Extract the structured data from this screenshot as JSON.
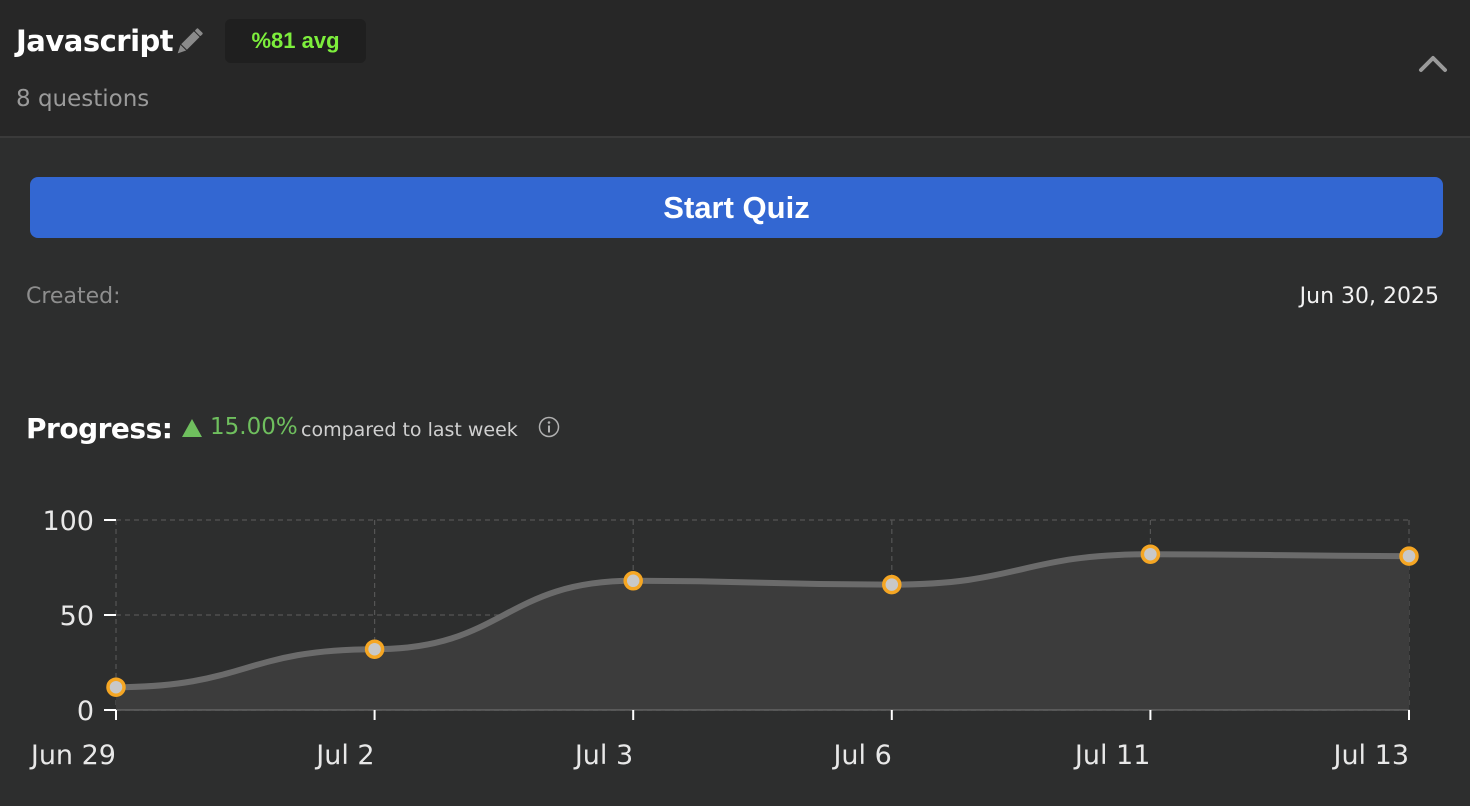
{
  "header": {
    "title": "Javascript",
    "avg_badge": "%81 avg",
    "subtitle": "8 questions",
    "edit_icon": "pencil-icon",
    "collapse_icon": "chevron-up-icon"
  },
  "actions": {
    "start_label": "Start Quiz"
  },
  "meta": {
    "created_label": "Created:",
    "created_value": "Jun 30, 2025"
  },
  "progress": {
    "label": "Progress:",
    "trend_direction": "up",
    "trend_percent": "15.00%",
    "trend_text": "compared to last week",
    "info_icon": "info-icon"
  },
  "colors": {
    "accent": "#3367d2",
    "badge_text": "#7dee3c",
    "trend_up": "#6fbf5e",
    "point_stroke": "#f5a623",
    "point_fill": "#c8c8c8",
    "line": "#6b6b6b"
  },
  "chart_data": {
    "type": "area",
    "categories": [
      "Jun 29",
      "Jul 2",
      "Jul 3",
      "Jul 6",
      "Jul 11",
      "Jul 13"
    ],
    "values": [
      12,
      32,
      68,
      66,
      82,
      81
    ],
    "ylim": [
      0,
      100
    ],
    "yticks": [
      0,
      50,
      100
    ],
    "grid": true,
    "legend": "none",
    "title": "",
    "xlabel": "",
    "ylabel": ""
  }
}
